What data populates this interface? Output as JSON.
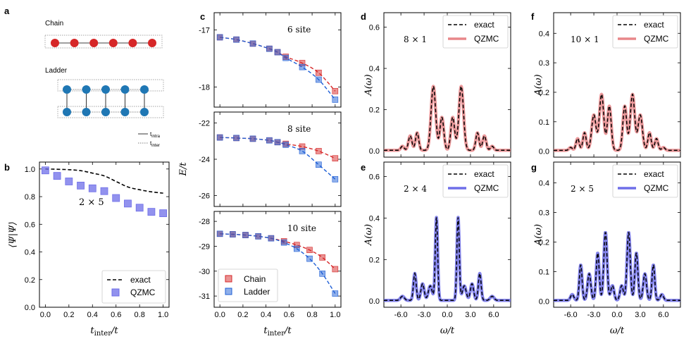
{
  "colors": {
    "chain": "#d62728",
    "ladder": "#1f5fd6",
    "ladder_node": "#1f77b4",
    "qzmc_red": "#e8878a",
    "qzmc_blue": "#6e6ee8",
    "exact": "#000000"
  },
  "panel_a": {
    "letter": "a",
    "chain_label": "Chain",
    "ladder_label": "Ladder",
    "chain_sites": 6,
    "ladder_rungs": 5,
    "legend": {
      "intra": "t",
      "intra_sub": "intra",
      "inter": "t",
      "inter_sub": "inter"
    }
  },
  "chart_data": [
    {
      "id": "b",
      "type": "line",
      "letter": "b",
      "xlabel": "t",
      "xlabel_sub": "inter",
      "xlabel_tail": "/t",
      "ylabel": "⟨Ψ|Ψ⟩",
      "xlim": [
        -0.05,
        1.05
      ],
      "ylim": [
        0.0,
        1.05
      ],
      "xticks": [
        0.0,
        0.2,
        0.4,
        0.6,
        0.8,
        1.0
      ],
      "xtick_labels": [
        "0.0",
        "0.2",
        "0.4",
        "0.6",
        "0.8",
        "1.0"
      ],
      "yticks": [
        0.0,
        0.2,
        0.4,
        0.6,
        0.8,
        1.0
      ],
      "ytick_labels": [
        "0.0",
        "0.2",
        "0.4",
        "0.6",
        "0.8",
        "1.0"
      ],
      "annotation": "2 × 5",
      "legend": [
        "exact",
        "QZMC"
      ],
      "legend_position": "lower-right",
      "series": [
        {
          "name": "exact",
          "style": "dashed",
          "x": [
            0.0,
            0.1,
            0.2,
            0.3,
            0.4,
            0.5,
            0.6,
            0.7,
            0.8,
            0.9,
            1.0
          ],
          "y": [
            1.0,
            0.998,
            0.995,
            0.988,
            0.97,
            0.95,
            0.91,
            0.87,
            0.85,
            0.835,
            0.825
          ]
        },
        {
          "name": "QZMC",
          "style": "square",
          "x": [
            0.0,
            0.1,
            0.2,
            0.3,
            0.4,
            0.5,
            0.6,
            0.7,
            0.8,
            0.9,
            1.0
          ],
          "y": [
            0.99,
            0.95,
            0.91,
            0.88,
            0.86,
            0.84,
            0.79,
            0.75,
            0.72,
            0.69,
            0.68
          ]
        }
      ]
    },
    {
      "id": "c1",
      "type": "line",
      "letter": "c",
      "ylabel": "E/t",
      "xlim": [
        -0.05,
        1.05
      ],
      "ylim": [
        -18.35,
        -16.7
      ],
      "xticks": [
        0.0,
        0.2,
        0.4,
        0.6,
        0.8,
        1.0
      ],
      "xtick_labels": [
        "",
        "",
        "",
        "",
        "",
        ""
      ],
      "yticks": [
        -17,
        -18
      ],
      "ytick_labels": [
        "-17",
        "-18"
      ],
      "annotation": "6 site",
      "series": [
        {
          "name": "Chain",
          "x": [
            0.0,
            0.143,
            0.286,
            0.429,
            0.5,
            0.571,
            0.714,
            0.857,
            1.0
          ],
          "y": [
            -17.13,
            -17.17,
            -17.24,
            -17.33,
            -17.39,
            -17.47,
            -17.58,
            -17.75,
            -18.07
          ]
        },
        {
          "name": "Ladder",
          "x": [
            0.0,
            0.143,
            0.286,
            0.429,
            0.5,
            0.571,
            0.714,
            0.857,
            1.0
          ],
          "y": [
            -17.13,
            -17.17,
            -17.24,
            -17.33,
            -17.39,
            -17.49,
            -17.65,
            -17.87,
            -18.22
          ]
        }
      ]
    },
    {
      "id": "c2",
      "type": "line",
      "xlim": [
        -0.05,
        1.05
      ],
      "ylim": [
        -26.6,
        -21.4
      ],
      "xticks": [
        0.0,
        0.2,
        0.4,
        0.6,
        0.8,
        1.0
      ],
      "xtick_labels": [
        "",
        "",
        "",
        "",
        "",
        ""
      ],
      "yticks": [
        -22,
        -24,
        -26
      ],
      "ytick_labels": [
        "-22",
        "-24",
        "-26"
      ],
      "annotation": "8 site",
      "series": [
        {
          "name": "Chain",
          "x": [
            0.0,
            0.143,
            0.286,
            0.429,
            0.5,
            0.571,
            0.714,
            0.857,
            1.0
          ],
          "y": [
            -22.8,
            -22.83,
            -22.87,
            -22.96,
            -23.06,
            -23.15,
            -23.3,
            -23.55,
            -23.95
          ]
        },
        {
          "name": "Ladder",
          "x": [
            0.0,
            0.143,
            0.286,
            0.429,
            0.5,
            0.571,
            0.714,
            0.857,
            1.0
          ],
          "y": [
            -22.8,
            -22.83,
            -22.87,
            -22.96,
            -23.06,
            -23.2,
            -23.55,
            -24.3,
            -25.1
          ]
        }
      ]
    },
    {
      "id": "c3",
      "type": "line",
      "xlabel": "t",
      "xlabel_sub": "inter",
      "xlabel_tail": "/t",
      "xlim": [
        -0.05,
        1.05
      ],
      "ylim": [
        -31.45,
        -27.6
      ],
      "xticks": [
        0.0,
        0.2,
        0.4,
        0.6,
        0.8,
        1.0
      ],
      "xtick_labels": [
        "0.0",
        "0.2",
        "0.4",
        "0.6",
        "0.8",
        "1.0"
      ],
      "yticks": [
        -28,
        -29,
        -30,
        -31
      ],
      "ytick_labels": [
        "-28",
        "-29",
        "-30",
        "-31"
      ],
      "annotation": "10 site",
      "legend": [
        "Chain",
        "Ladder"
      ],
      "legend_position": "lower-left",
      "series": [
        {
          "name": "Chain",
          "x": [
            0.0,
            0.111,
            0.222,
            0.333,
            0.444,
            0.556,
            0.667,
            0.778,
            0.889,
            1.0
          ],
          "y": [
            -28.5,
            -28.52,
            -28.55,
            -28.6,
            -28.68,
            -28.8,
            -28.95,
            -29.15,
            -29.45,
            -29.92
          ]
        },
        {
          "name": "Ladder",
          "x": [
            0.0,
            0.111,
            0.222,
            0.333,
            0.444,
            0.556,
            0.667,
            0.778,
            0.889,
            1.0
          ],
          "y": [
            -28.5,
            -28.52,
            -28.55,
            -28.6,
            -28.68,
            -28.85,
            -29.1,
            -29.5,
            -30.1,
            -30.9
          ]
        }
      ]
    },
    {
      "id": "d",
      "type": "line",
      "letter": "d",
      "ylabel": "A(ω)",
      "xlim": [
        -8.2,
        8.2
      ],
      "ylim": [
        -0.03,
        0.67
      ],
      "xticks": [
        -6,
        -3,
        0,
        3,
        6
      ],
      "xtick_labels": [
        "",
        "",
        "",
        "",
        ""
      ],
      "yticks": [
        0.0,
        0.2,
        0.4,
        0.6
      ],
      "ytick_labels": [
        "0.0",
        "0.2",
        "0.4",
        "0.6"
      ],
      "annotation": "8 × 1",
      "legend": [
        "exact",
        "QZMC"
      ],
      "legend_position": "top-right",
      "qzmc_color": "red",
      "peaks": [
        {
          "center": -1.8,
          "height": 0.31,
          "width": 0.42
        },
        {
          "center": 1.8,
          "height": 0.31,
          "width": 0.42
        },
        {
          "center": -0.7,
          "height": 0.16,
          "width": 0.35
        },
        {
          "center": 0.7,
          "height": 0.16,
          "width": 0.35
        },
        {
          "center": -3.9,
          "height": 0.085,
          "width": 0.3
        },
        {
          "center": 3.9,
          "height": 0.085,
          "width": 0.3
        },
        {
          "center": -4.8,
          "height": 0.07,
          "width": 0.32
        },
        {
          "center": 4.8,
          "height": 0.07,
          "width": 0.32
        },
        {
          "center": -5.8,
          "height": 0.02,
          "width": 0.3
        },
        {
          "center": 5.8,
          "height": 0.02,
          "width": 0.3
        }
      ]
    },
    {
      "id": "e",
      "type": "line",
      "letter": "e",
      "ylabel": "A(ω)",
      "xlabel": "ω/t",
      "xlim": [
        -8.2,
        8.2
      ],
      "ylim": [
        -0.03,
        0.67
      ],
      "xticks": [
        -6,
        -3,
        0,
        3,
        6
      ],
      "xtick_labels": [
        "-6.0",
        "-3.0",
        "0.0",
        "3.0",
        "6.0"
      ],
      "yticks": [
        0.0,
        0.2,
        0.4,
        0.6
      ],
      "ytick_labels": [
        "0.0",
        "0.2",
        "0.4",
        "0.6"
      ],
      "annotation": "2 × 4",
      "legend": [
        "exact",
        "QZMC"
      ],
      "legend_position": "top-right",
      "qzmc_color": "blue",
      "peaks": [
        {
          "center": -1.4,
          "height": 0.4,
          "width": 0.22
        },
        {
          "center": 1.4,
          "height": 0.4,
          "width": 0.22
        },
        {
          "center": -2.2,
          "height": 0.07,
          "width": 0.35
        },
        {
          "center": 2.2,
          "height": 0.07,
          "width": 0.35
        },
        {
          "center": -4.2,
          "height": 0.13,
          "width": 0.25
        },
        {
          "center": 4.2,
          "height": 0.13,
          "width": 0.25
        },
        {
          "center": -3.2,
          "height": 0.08,
          "width": 0.3
        },
        {
          "center": 3.2,
          "height": 0.08,
          "width": 0.3
        },
        {
          "center": -5.8,
          "height": 0.02,
          "width": 0.35
        },
        {
          "center": 5.8,
          "height": 0.02,
          "width": 0.35
        }
      ]
    },
    {
      "id": "f",
      "type": "line",
      "letter": "f",
      "ylabel": "A(ω)",
      "xlim": [
        -8.2,
        8.2
      ],
      "ylim": [
        -0.02,
        0.47
      ],
      "xticks": [
        -6,
        -3,
        0,
        3,
        6
      ],
      "xtick_labels": [
        "",
        "",
        "",
        "",
        ""
      ],
      "yticks": [
        0.0,
        0.1,
        0.2,
        0.3,
        0.4
      ],
      "ytick_labels": [
        "0.0",
        "0.1",
        "0.2",
        "0.3",
        "0.4"
      ],
      "annotation": "10 × 1",
      "legend": [
        "exact",
        "QZMC"
      ],
      "legend_position": "top-right",
      "qzmc_color": "red",
      "peaks": [
        {
          "center": -2.0,
          "height": 0.19,
          "width": 0.4
        },
        {
          "center": 2.0,
          "height": 0.19,
          "width": 0.4
        },
        {
          "center": -1.0,
          "height": 0.15,
          "width": 0.35
        },
        {
          "center": 1.0,
          "height": 0.15,
          "width": 0.35
        },
        {
          "center": -3.0,
          "height": 0.12,
          "width": 0.4
        },
        {
          "center": 3.0,
          "height": 0.12,
          "width": 0.4
        },
        {
          "center": -4.2,
          "height": 0.06,
          "width": 0.3
        },
        {
          "center": 4.2,
          "height": 0.06,
          "width": 0.3
        },
        {
          "center": -5.1,
          "height": 0.04,
          "width": 0.3
        },
        {
          "center": 5.1,
          "height": 0.04,
          "width": 0.3
        },
        {
          "center": -6.0,
          "height": 0.01,
          "width": 0.3
        },
        {
          "center": 6.0,
          "height": 0.01,
          "width": 0.3
        }
      ]
    },
    {
      "id": "g",
      "type": "line",
      "letter": "g",
      "ylabel": "A(ω)",
      "xlabel": "ω/t",
      "xlim": [
        -8.2,
        8.2
      ],
      "ylim": [
        -0.02,
        0.47
      ],
      "xticks": [
        -6,
        -3,
        0,
        3,
        6
      ],
      "xtick_labels": [
        "-6.0",
        "-3.0",
        "0.0",
        "3.0",
        "6.0"
      ],
      "yticks": [
        0.0,
        0.1,
        0.2,
        0.3,
        0.4
      ],
      "ytick_labels": [
        "0.0",
        "0.1",
        "0.2",
        "0.3",
        "0.4"
      ],
      "annotation": "2 × 5",
      "legend": [
        "exact",
        "QZMC"
      ],
      "legend_position": "top-right",
      "qzmc_color": "blue",
      "peaks": [
        {
          "center": -1.5,
          "height": 0.23,
          "width": 0.3
        },
        {
          "center": 1.5,
          "height": 0.23,
          "width": 0.3
        },
        {
          "center": -2.5,
          "height": 0.16,
          "width": 0.28
        },
        {
          "center": 2.5,
          "height": 0.16,
          "width": 0.28
        },
        {
          "center": -0.6,
          "height": 0.05,
          "width": 0.3
        },
        {
          "center": 0.6,
          "height": 0.05,
          "width": 0.3
        },
        {
          "center": -3.6,
          "height": 0.09,
          "width": 0.3
        },
        {
          "center": 3.6,
          "height": 0.09,
          "width": 0.3
        },
        {
          "center": -4.7,
          "height": 0.12,
          "width": 0.25
        },
        {
          "center": 4.7,
          "height": 0.12,
          "width": 0.25
        },
        {
          "center": -5.8,
          "height": 0.02,
          "width": 0.3
        },
        {
          "center": 5.8,
          "height": 0.02,
          "width": 0.3
        }
      ]
    }
  ]
}
